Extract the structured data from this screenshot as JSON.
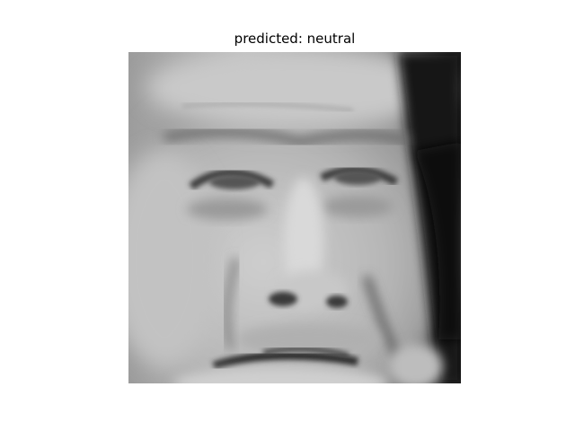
{
  "title": "predicted: neutral"
}
